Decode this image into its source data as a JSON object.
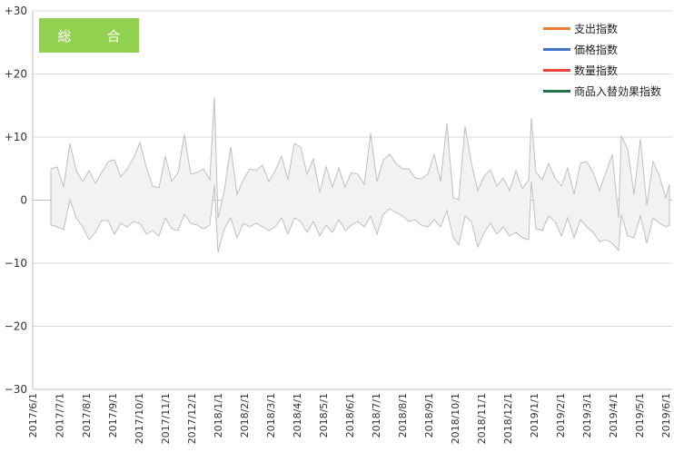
{
  "title_badge": "総　合",
  "legend": [
    {
      "label": "支出指数",
      "color": "#ed7d31"
    },
    {
      "label": "価格指数",
      "color": "#4472c4"
    },
    {
      "label": "数量指数",
      "color": "#e7443a"
    },
    {
      "label": "商品入替効果指数",
      "color": "#217346"
    }
  ],
  "y_ticks": [
    "+30",
    "+20",
    "+10",
    "0",
    "−10",
    "−20",
    "−30"
  ],
  "x_ticks": [
    "2017/6/1",
    "2017/7/1",
    "2017/8/1",
    "2017/9/1",
    "2017/10/1",
    "2017/11/1",
    "2017/12/1",
    "2018/1/1",
    "2018/2/1",
    "2018/3/1",
    "2018/4/1",
    "2018/5/1",
    "2018/6/1",
    "2018/7/1",
    "2018/8/1",
    "2018/9/1",
    "2018/10/1",
    "2018/11/1",
    "2018/12/1",
    "2019/1/1",
    "2019/2/1",
    "2019/3/1",
    "2019/4/1",
    "2019/5/1",
    "2019/6/1"
  ]
}
